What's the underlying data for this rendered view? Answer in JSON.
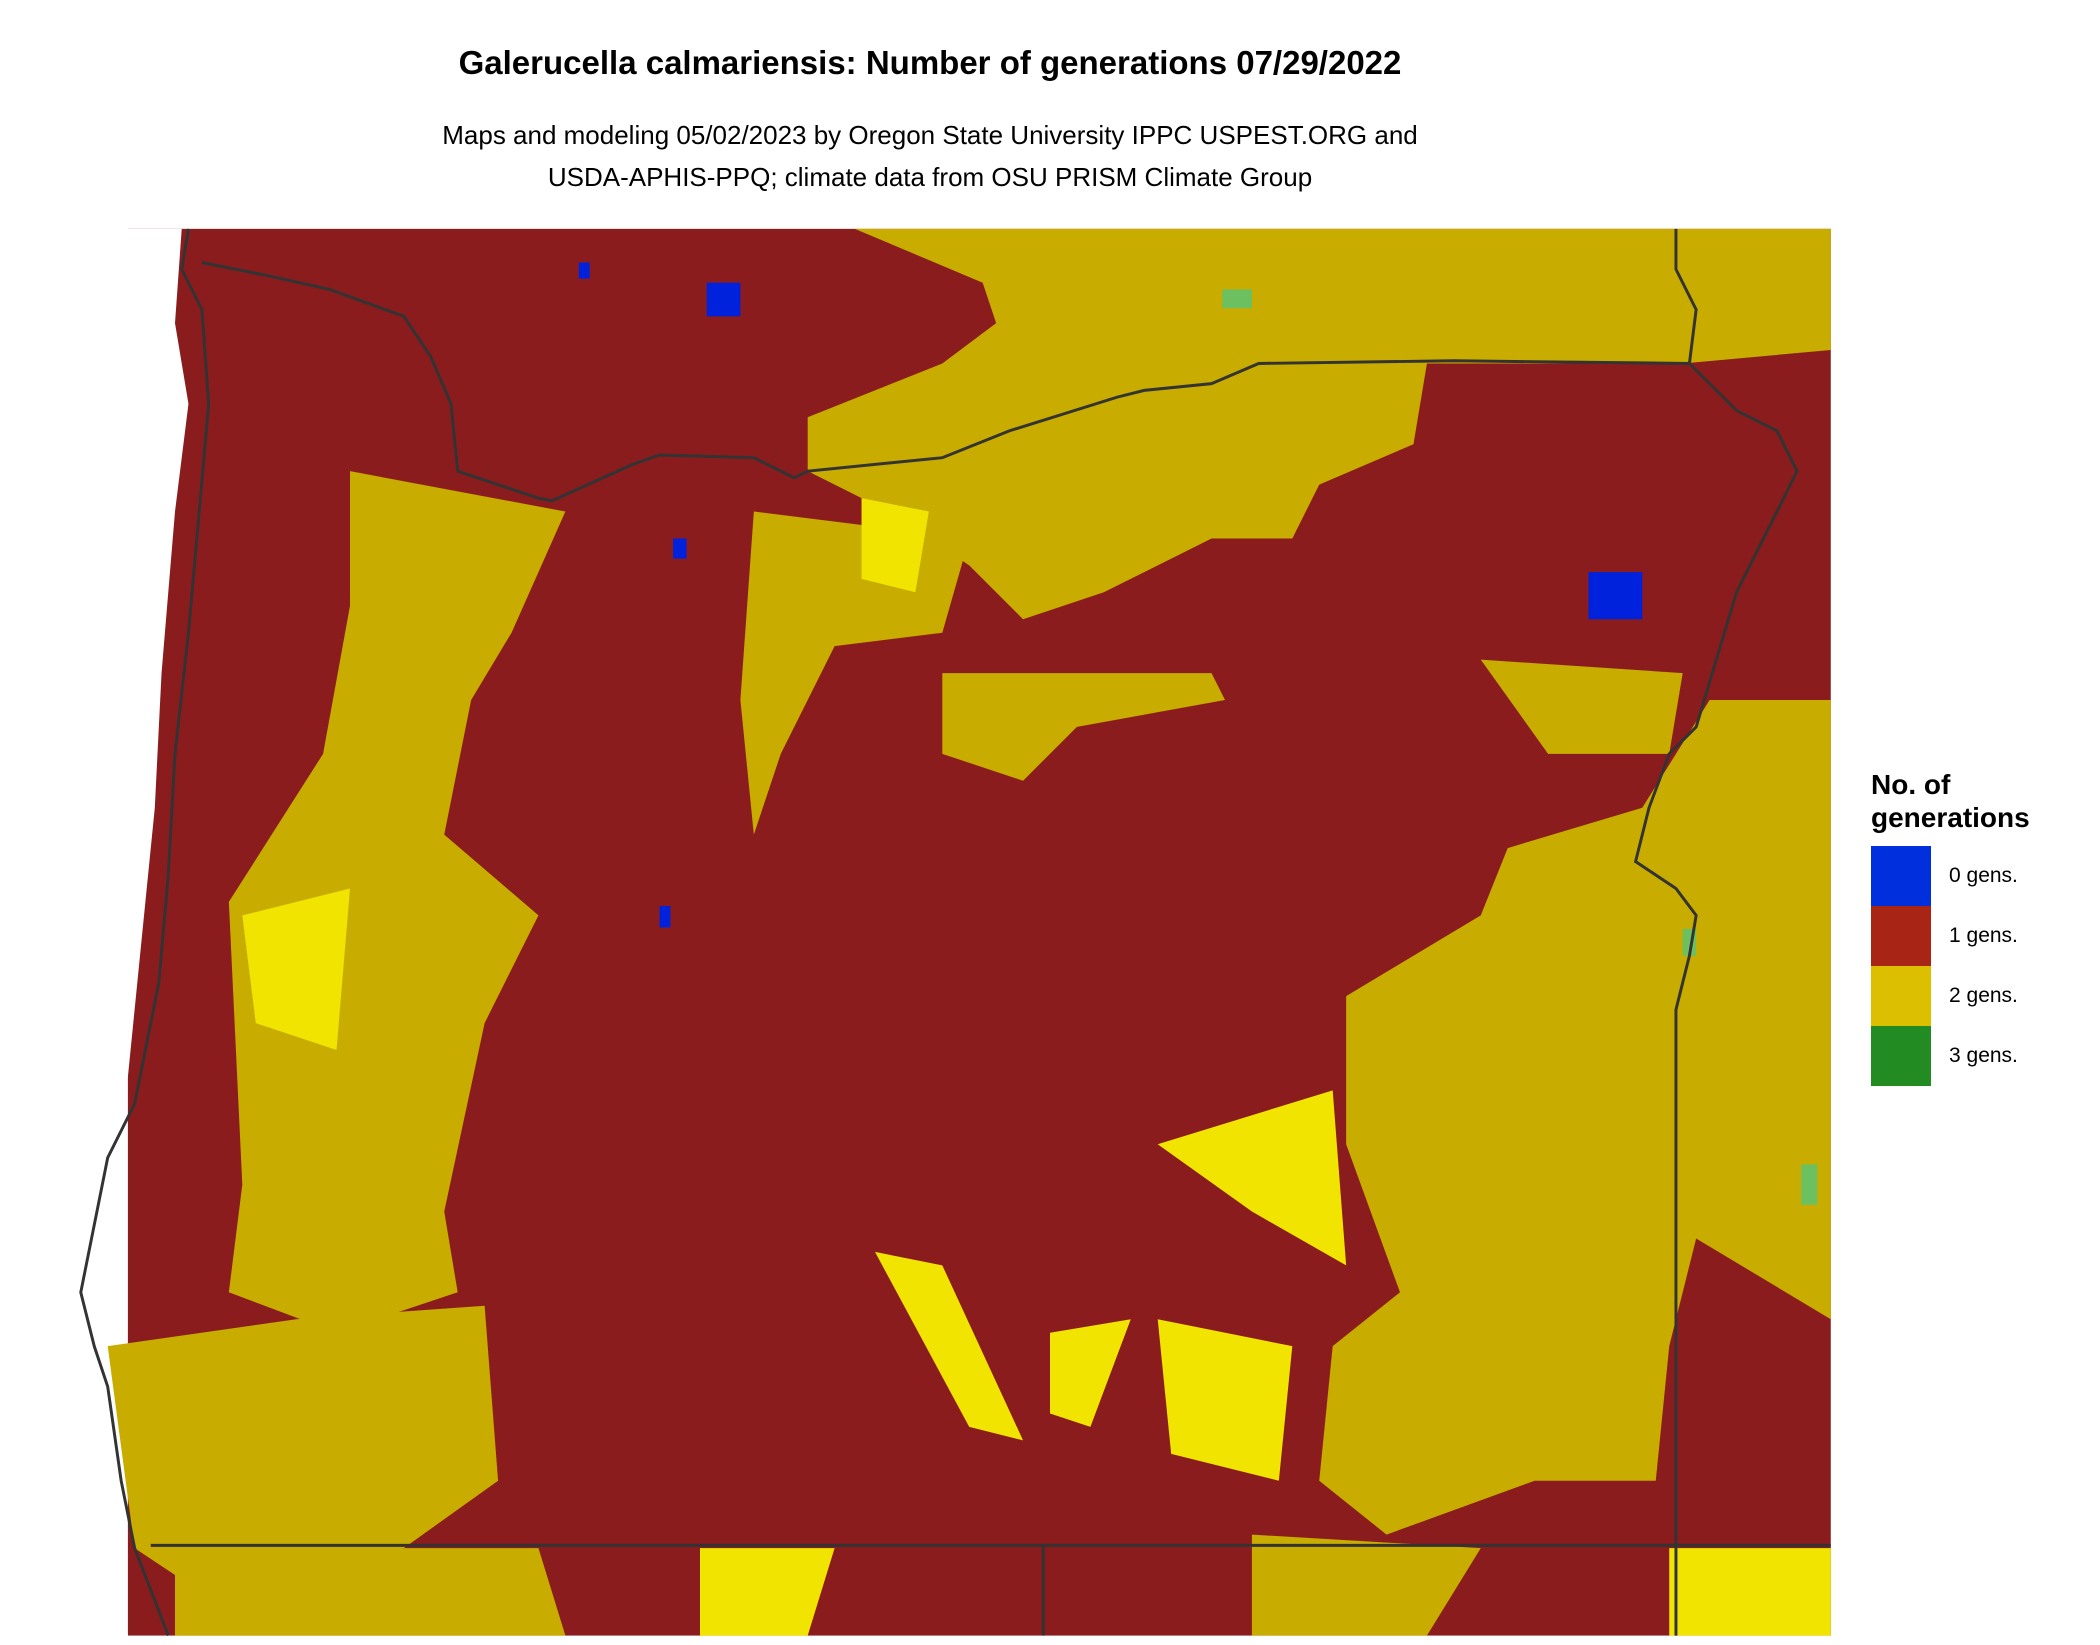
{
  "title": "Galerucella calmariensis: Number of generations 07/29/2022",
  "subtitle_line1": "Maps and modeling 05/02/2023 by Oregon State University IPPC USPEST.ORG and",
  "subtitle_line2": "USDA-APHIS-PPQ; climate data from OSU PRISM Climate Group",
  "legend": {
    "title_line1": "No. of",
    "title_line2": "generations",
    "items": [
      {
        "label": "0 gens.",
        "color": "#0030DD"
      },
      {
        "label": "1 gens.",
        "color": "#A82414"
      },
      {
        "label": "2 gens.",
        "color": "#DCC000"
      },
      {
        "label": "3 gens.",
        "color": "#228B22"
      }
    ]
  },
  "map_colors": {
    "one_gen": "#8A1C1E",
    "two_gen_olive": "#C8AC00",
    "two_gen_bright": "#F0E400",
    "zero_gen": "#0022DD",
    "border": "#333333"
  }
}
